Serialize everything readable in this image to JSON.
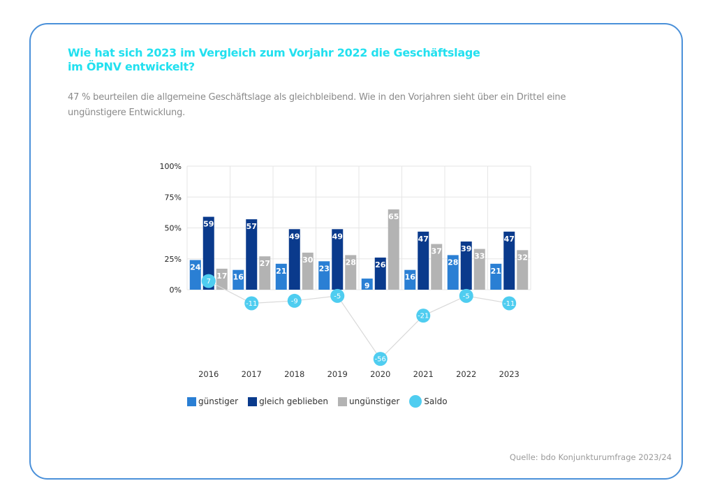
{
  "header": {
    "title_line1": "Wie hat sich 2023 im Vergleich zum Vorjahr 2022 die Geschäftslage",
    "title_line2": "im ÖPNV entwickelt?",
    "subtitle_line1": "47 % beurteilen die allgemeine Geschäftslage als gleichbleibend. Wie in den Vorjahren sieht über ein Drittel eine",
    "subtitle_line2": "ungünstigere Entwicklung."
  },
  "footer": {
    "source": "Quelle: bdo Konjunkturumfrage 2023/24"
  },
  "colors": {
    "title": "#22e0ef",
    "frame": "#4a90d9",
    "guenstiger": "#2a7fd4",
    "gleich": "#0a3a8c",
    "unguenstiger": "#b3b3b3",
    "saldo": "#4fcdf0",
    "saldo_line": "#d9d9d9",
    "grid": "#e6e6e6"
  },
  "chart_data": {
    "type": "bar",
    "title": "Wie hat sich 2023 im Vergleich zum Vorjahr 2022 die Geschäftslage im ÖPNV entwickelt?",
    "xlabel": "",
    "ylabel": "",
    "categories": [
      "2016",
      "2017",
      "2018",
      "2019",
      "2020",
      "2021",
      "2022",
      "2023"
    ],
    "yticks": [
      "0%",
      "25%",
      "50%",
      "75%",
      "100%"
    ],
    "ytick_values": [
      0,
      25,
      50,
      75,
      100
    ],
    "ylim": [
      0,
      100
    ],
    "grid": true,
    "legend_position": "bottom-left",
    "series": [
      {
        "name": "günstiger",
        "type": "bar",
        "values": [
          24,
          16,
          21,
          23,
          9,
          16,
          28,
          21
        ]
      },
      {
        "name": "gleich geblieben",
        "type": "bar",
        "values": [
          59,
          57,
          49,
          49,
          26,
          47,
          39,
          47
        ]
      },
      {
        "name": "ungünstiger",
        "type": "bar",
        "values": [
          17,
          27,
          30,
          28,
          65,
          37,
          33,
          32
        ]
      },
      {
        "name": "Saldo",
        "type": "line",
        "values": [
          7,
          -11,
          -9,
          -5,
          -56,
          -21,
          -5,
          -11
        ]
      }
    ]
  }
}
